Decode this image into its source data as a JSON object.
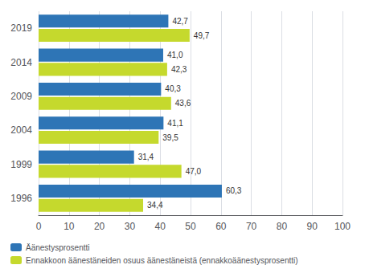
{
  "chart_data": {
    "type": "bar",
    "orientation": "horizontal",
    "categories": [
      "1996",
      "1999",
      "2004",
      "2009",
      "2014",
      "2019"
    ],
    "series": [
      {
        "name": "Äänestysprosentti",
        "color": "#2E75B6",
        "values": [
          60.3,
          31.4,
          41.1,
          40.3,
          41.0,
          42.7
        ],
        "value_labels": [
          "60,3",
          "31,4",
          "41,1",
          "40,3",
          "41,0",
          "42,7"
        ]
      },
      {
        "name": "Ennakkoon äänestäneiden osuus äänestäneistä (ennakkoäänestysprosentti)",
        "color": "#C5D92D",
        "values": [
          34.4,
          47.0,
          39.5,
          43.6,
          42.3,
          49.7
        ],
        "value_labels": [
          "34,4",
          "47,0",
          "39,5",
          "43,6",
          "42,3",
          "49,7"
        ]
      }
    ],
    "xlim": [
      0,
      100
    ],
    "xticks": [
      0,
      10,
      20,
      30,
      40,
      50,
      60,
      70,
      80,
      90,
      100
    ],
    "grid": true,
    "legend": "lower left",
    "data_labels": true
  }
}
